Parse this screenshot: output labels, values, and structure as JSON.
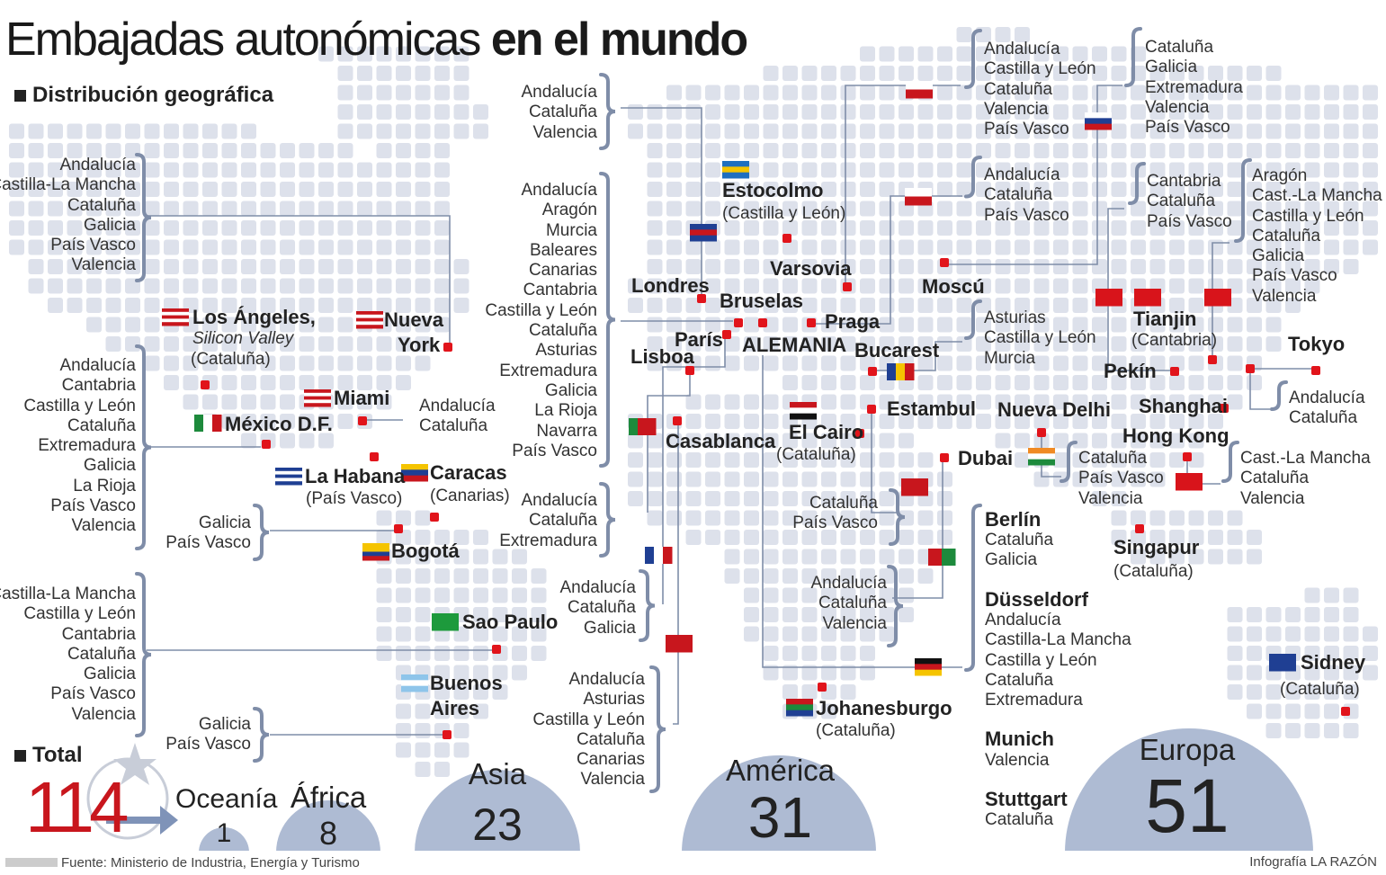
{
  "title": {
    "light": "Embajadas autonómicas",
    "bold": "en el mundo"
  },
  "section_geo": "Distribución geográfica",
  "section_total": "Total",
  "total": "114",
  "regions": {
    "oceania": {
      "label": "Oceanía",
      "value": "1"
    },
    "africa": {
      "label": "África",
      "value": "8"
    },
    "asia": {
      "label": "Asia",
      "value": "23"
    },
    "america": {
      "label": "América",
      "value": "31"
    },
    "europa": {
      "label": "Europa",
      "value": "51"
    }
  },
  "cities": {
    "los_angeles": {
      "name": "Los Ángeles,",
      "sub": "Silicon Valley",
      "sub2": "(Cataluña)"
    },
    "nueva_york": {
      "name1": "Nueva",
      "name2": "York"
    },
    "miami": {
      "name": "Miami"
    },
    "mexico": {
      "name": "México D.F."
    },
    "habana": {
      "name": "La Habana",
      "sub": "(País Vasco)"
    },
    "caracas": {
      "name": "Caracas",
      "sub": "(Canarias)"
    },
    "bogota": {
      "name": "Bogotá"
    },
    "sao_paulo": {
      "name": "Sao Paulo"
    },
    "buenos_aires": {
      "name1": "Buenos",
      "name2": "Aires"
    },
    "londres": {
      "name": "Londres"
    },
    "estocolmo": {
      "name": "Estocolmo",
      "sub": "(Castilla y León)"
    },
    "varsovia": {
      "name": "Varsovia"
    },
    "bruselas": {
      "name": "Bruselas"
    },
    "paris": {
      "name": "París"
    },
    "alemania": {
      "name": "ALEMANIA"
    },
    "praga": {
      "name": "Praga"
    },
    "lisboa": {
      "name": "Lisboa"
    },
    "bucarest": {
      "name": "Bucarest"
    },
    "moscu": {
      "name": "Moscú"
    },
    "casablanca": {
      "name": "Casablanca"
    },
    "estambul": {
      "name": "Estambul"
    },
    "el_cairo": {
      "name": "El Cairo",
      "sub": "(Cataluña)"
    },
    "dubai": {
      "name": "Dubai"
    },
    "johanesburgo": {
      "name": "Johanesburgo",
      "sub": "(Cataluña)"
    },
    "nueva_delhi": {
      "name": "Nueva Delhi"
    },
    "tianjin": {
      "name": "Tianjin",
      "sub": "(Cantabria)"
    },
    "pekin": {
      "name": "Pekín"
    },
    "tokyo": {
      "name": "Tokyo"
    },
    "shanghai": {
      "name": "Shanghai"
    },
    "hong_kong": {
      "name": "Hong Kong"
    },
    "singapur": {
      "name": "Singapur",
      "sub": "(Cataluña)"
    },
    "sidney": {
      "name": "Sidney",
      "sub": "(Cataluña)"
    }
  },
  "lists": {
    "nueva_york": [
      "Andalucía",
      "Castilla-La Mancha",
      "Cataluña",
      "Galicia",
      "País Vasco",
      "Valencia"
    ],
    "mexico": [
      "Andalucía",
      "Cantabria",
      "Castilla y León",
      "Cataluña",
      "Extremadura",
      "Galicia",
      "La Rioja",
      "País Vasco",
      "Valencia"
    ],
    "miami": [
      "Andalucía",
      "Cataluña"
    ],
    "bogota": [
      "Galicia",
      "País Vasco"
    ],
    "sao_paulo": [
      "Castilla-La Mancha",
      "Castilla y León",
      "Cantabria",
      "Cataluña",
      "Galicia",
      "País Vasco",
      "Valencia"
    ],
    "buenos_aires": [
      "Galicia",
      "País Vasco"
    ],
    "londres": [
      "Andalucía",
      "Cataluña",
      "Valencia"
    ],
    "bruselas": [
      "Andalucía",
      "Aragón",
      "Murcia",
      "Baleares",
      "Canarias",
      "Cantabria",
      "Castilla y León",
      "Cataluña",
      "Asturias",
      "Extremadura",
      "Galicia",
      "La Rioja",
      "Navarra",
      "País Vasco"
    ],
    "lisboa": [
      "Andalucía",
      "Cataluña",
      "Extremadura"
    ],
    "paris": [
      "Andalucía",
      "Cataluña",
      "Galicia"
    ],
    "casablanca": [
      "Andalucía",
      "Asturias",
      "Castilla y León",
      "Cataluña",
      "Canarias",
      "Valencia"
    ],
    "varsovia": [
      "Andalucía",
      "Castilla y León",
      "Cataluña",
      "Valencia",
      "País Vasco"
    ],
    "moscu": [
      "Cataluña",
      "Galicia",
      "Extremadura",
      "Valencia",
      "País Vasco"
    ],
    "praga": [
      "Andalucía",
      "Cataluña",
      "País Vasco"
    ],
    "bucarest": [
      "Asturias",
      "Castilla y León",
      "Murcia"
    ],
    "tianjin": [
      "Cantabria",
      "Cataluña",
      "País Vasco"
    ],
    "pekin": [
      "Aragón",
      "Cast.-La Mancha",
      "Castilla y León",
      "Cataluña",
      "Galicia",
      "País Vasco",
      "Valencia"
    ],
    "tokyo": [
      "Andalucía",
      "Cataluña"
    ],
    "nueva_delhi": [
      "Cataluña",
      "País Vasco",
      "Valencia"
    ],
    "hong_kong": [
      "Cast.-La Mancha",
      "Cataluña",
      "Valencia"
    ],
    "estambul": [
      "Cataluña",
      "País Vasco"
    ],
    "dubai": [
      "Andalucía",
      "Cataluña",
      "Valencia"
    ]
  },
  "germany": {
    "berlin": {
      "name": "Berlín",
      "list": [
        "Cataluña",
        "Galicia"
      ]
    },
    "dusseldorf": {
      "name": "Düsseldorf",
      "list": [
        "Andalucía",
        "Castilla-La Mancha",
        "Castilla y León",
        "Cataluña",
        "Extremadura"
      ]
    },
    "munich": {
      "name": "Munich",
      "list": [
        "Valencia"
      ]
    },
    "stuttgart": {
      "name": "Stuttgart",
      "list": [
        "Cataluña"
      ]
    }
  },
  "source": "Fuente: Ministerio de Industria, Energía y Turismo",
  "credit": "Infografía LA RAZÓN",
  "colors": {
    "accent": "#e1141b",
    "dots": "#dde1eb",
    "bubble": "#aebbd3",
    "lines": "#7f8da8"
  }
}
